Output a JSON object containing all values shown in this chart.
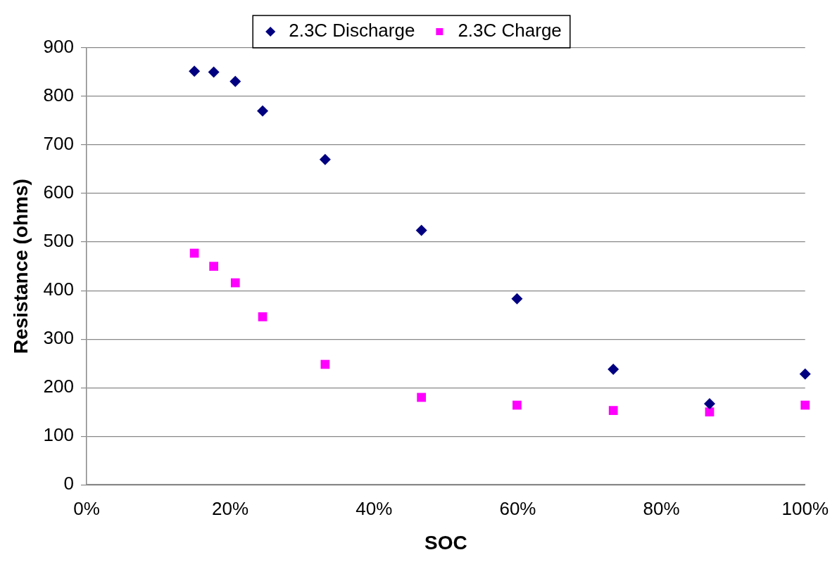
{
  "chart_data": {
    "type": "scatter",
    "xlabel": "SOC",
    "ylabel": "Resistance (ohms)",
    "x": [
      15,
      17.7,
      20.7,
      24.5,
      33.2,
      46.6,
      59.9,
      73.3,
      86.7,
      100
    ],
    "series": [
      {
        "name": "2.3C Discharge",
        "color": "#000080",
        "marker": "diamond",
        "values": [
          852,
          850,
          831,
          770,
          670,
          524,
          383,
          238,
          167,
          228
        ]
      },
      {
        "name": "2.3C Charge",
        "color": "#ff00ff",
        "marker": "square",
        "values": [
          477,
          450,
          416,
          346,
          248,
          180,
          164,
          153,
          150,
          164
        ]
      }
    ],
    "xlim": [
      0,
      100
    ],
    "xticks": [
      {
        "value": 0,
        "label": "0%"
      },
      {
        "value": 20,
        "label": "20%"
      },
      {
        "value": 40,
        "label": "40%"
      },
      {
        "value": 60,
        "label": "60%"
      },
      {
        "value": 80,
        "label": "80%"
      },
      {
        "value": 100,
        "label": "100%"
      }
    ],
    "ylim": [
      0,
      900
    ],
    "yticks": [
      0,
      100,
      200,
      300,
      400,
      500,
      600,
      700,
      800,
      900
    ],
    "grid": "y",
    "legend": "top"
  }
}
